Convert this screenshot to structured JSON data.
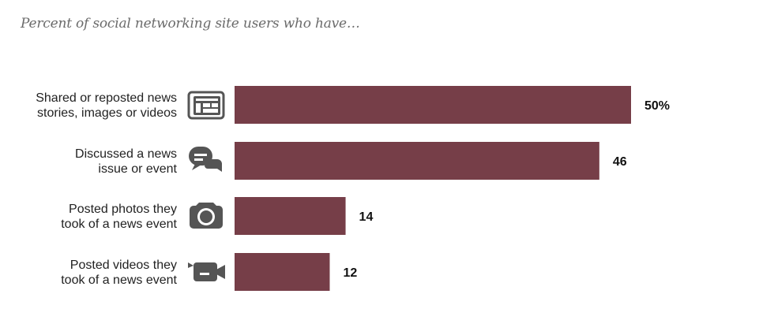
{
  "subtitle": "Percent of social networking site users who have…",
  "chart_data": {
    "type": "bar",
    "orientation": "horizontal",
    "title": "",
    "subtitle": "Percent of social networking site users who have…",
    "categories": [
      "Shared or reposted news stories, images or videos",
      "Discussed a news issue or event",
      "Posted photos they took of a news event",
      "Posted videos they took of a news event"
    ],
    "category_lines": [
      [
        "Shared or reposted news",
        "stories, images or videos"
      ],
      [
        "Discussed a news",
        "issue or event"
      ],
      [
        "Posted photos they",
        "took of a news event"
      ],
      [
        "Posted videos they",
        "took of a news event"
      ]
    ],
    "values": [
      50,
      46,
      14,
      12
    ],
    "value_labels": [
      "50%",
      "46",
      "14",
      "12"
    ],
    "icons": [
      "newspaper-icon",
      "speech-bubbles-icon",
      "camera-icon",
      "video-camera-icon"
    ],
    "xlim": [
      0,
      50
    ],
    "grid": false,
    "bar_color": "#763e48",
    "icon_color": "#555555"
  }
}
